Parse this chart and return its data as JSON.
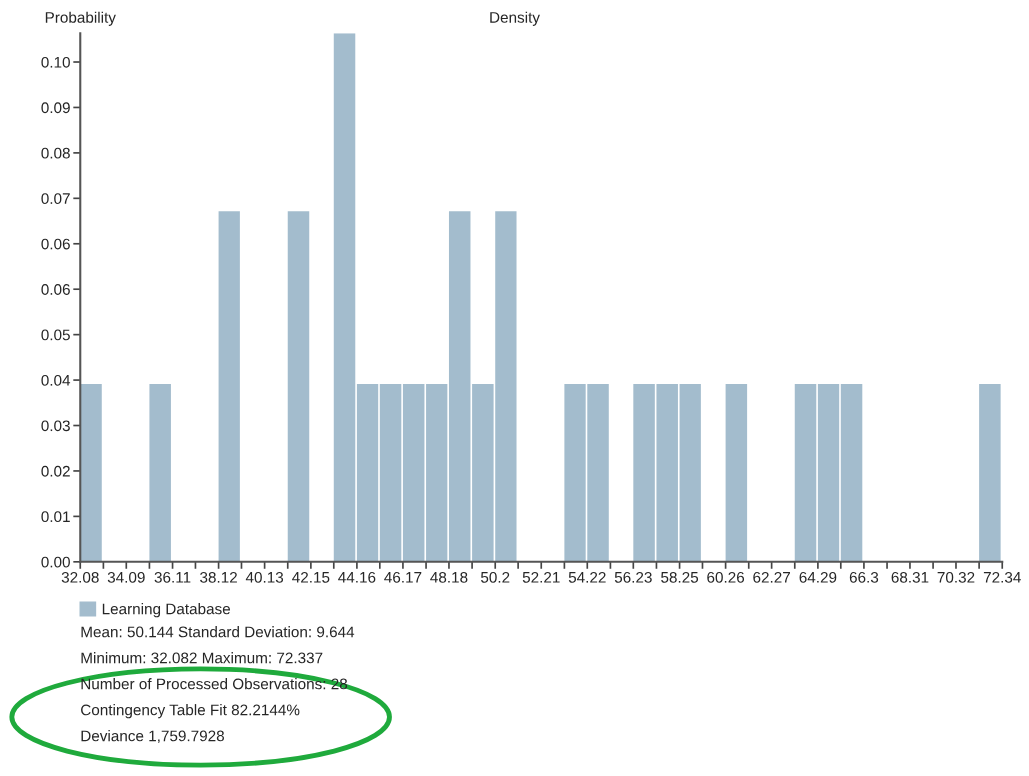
{
  "chart_data": {
    "type": "histogram",
    "title": "Density",
    "ylabel": "Probability",
    "bins": [
      32.08,
      33.09,
      34.09,
      35.1,
      36.11,
      37.11,
      38.12,
      39.12,
      40.13,
      41.14,
      42.15,
      43.15,
      44.16,
      45.16,
      46.17,
      47.18,
      48.18,
      49.19,
      50.2,
      51.2,
      52.21,
      53.22,
      54.22,
      55.23,
      56.23,
      57.24,
      58.25,
      59.25,
      60.26,
      61.27,
      62.27,
      63.28,
      64.29,
      65.29,
      66.3,
      67.31,
      68.31,
      69.32,
      70.32,
      71.33,
      72.34
    ],
    "series": [
      {
        "name": "Learning Database",
        "color": "#a3bccd",
        "values": [
          0.036,
          0,
          0,
          0.036,
          0,
          0,
          0.071,
          0,
          0,
          0.071,
          0,
          0.107,
          0.036,
          0.036,
          0.036,
          0.036,
          0.071,
          0.036,
          0.071,
          0,
          0,
          0.036,
          0.036,
          0,
          0.036,
          0.036,
          0.036,
          0,
          0.036,
          0,
          0,
          0.036,
          0.036,
          0.036,
          0,
          0,
          0,
          0,
          0,
          0.036
        ]
      }
    ],
    "xlim": [
      32.08,
      72.34
    ],
    "ylim": [
      0,
      0.107
    ],
    "xticks": [
      32.08,
      {
        "value": 33.09,
        "label": null
      },
      34.09,
      {
        "value": 35.1,
        "label": null
      },
      36.11,
      {
        "value": 37.11,
        "label": null
      },
      38.12,
      {
        "value": 39.12,
        "label": null
      },
      40.13,
      {
        "value": 41.14,
        "label": null
      },
      42.15,
      {
        "value": 43.15,
        "label": null
      },
      44.16,
      {
        "value": 45.16,
        "label": null
      },
      46.17,
      {
        "value": 47.18,
        "label": null
      },
      48.18,
      {
        "value": 49.19,
        "label": null
      },
      50.2,
      {
        "value": 51.2,
        "label": null
      },
      52.21,
      {
        "value": 53.22,
        "label": null
      },
      54.22,
      {
        "value": 55.23,
        "label": null
      },
      56.23,
      {
        "value": 57.24,
        "label": null
      },
      58.25,
      {
        "value": 59.25,
        "label": null
      },
      60.26,
      {
        "value": 61.27,
        "label": null
      },
      62.27,
      {
        "value": 63.28,
        "label": null
      },
      64.29,
      {
        "value": 65.29,
        "label": null
      },
      66.3,
      {
        "value": 67.31,
        "label": null
      },
      68.31,
      {
        "value": 69.32,
        "label": null
      },
      70.32,
      {
        "value": 71.33,
        "label": null
      },
      72.34
    ],
    "yticks": [
      {
        "value": 0,
        "label": "0.00"
      },
      {
        "value": 0.0092,
        "label": "0.01"
      },
      {
        "value": 0.0184,
        "label": "0.02"
      },
      {
        "value": 0.0276,
        "label": "0.03"
      },
      {
        "value": 0.0368,
        "label": "0.04"
      },
      {
        "value": 0.046,
        "label": "0.05"
      },
      {
        "value": 0.0552,
        "label": "0.06"
      },
      {
        "value": 0.0644,
        "label": "0.06"
      },
      {
        "value": 0.0736,
        "label": "0.07"
      },
      {
        "value": 0.0828,
        "label": "0.08"
      },
      {
        "value": 0.092,
        "label": "0.09"
      },
      {
        "value": 0.1012,
        "label": "0.10"
      }
    ],
    "grid": false,
    "legend": "bottom left",
    "annotations": [
      "Mean: 50.144 Standard Deviation: 9.644",
      "Minimum: 32.082 Maximum: 72.337",
      "Number of Processed Observations: 28",
      "Contingency Table Fit 82.2144%",
      "Deviance 1,759.7928"
    ]
  }
}
